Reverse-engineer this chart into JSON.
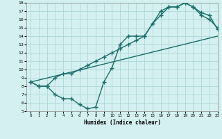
{
  "xlabel": "Humidex (Indice chaleur)",
  "bg_color": "#d4f0f0",
  "grid_color": "#aed8d8",
  "line_color": "#1a6e6a",
  "line1_x": [
    0,
    1,
    2,
    3,
    4,
    5,
    6,
    7,
    8,
    9,
    10,
    11,
    12,
    13,
    14,
    15,
    16,
    17,
    18,
    19,
    20,
    21,
    22,
    23
  ],
  "line1_y": [
    8.5,
    8.0,
    8.0,
    9.0,
    9.5,
    9.5,
    10.0,
    10.5,
    11.0,
    11.5,
    12.0,
    12.5,
    13.0,
    13.5,
    14.0,
    15.5,
    16.5,
    17.5,
    17.5,
    18.0,
    17.5,
    16.5,
    16.0,
    15.0
  ],
  "line2_x": [
    0,
    1,
    2,
    3,
    4,
    5,
    6,
    7,
    8,
    9,
    10,
    11,
    12,
    13,
    14,
    15,
    16,
    17,
    18,
    19,
    20,
    21,
    22,
    23
  ],
  "line2_y": [
    8.5,
    8.0,
    8.0,
    7.0,
    6.5,
    6.5,
    5.8,
    5.3,
    5.5,
    8.5,
    10.2,
    13.0,
    14.0,
    14.0,
    14.0,
    15.5,
    17.0,
    17.5,
    17.5,
    18.0,
    17.5,
    16.8,
    16.5,
    14.8
  ],
  "line3_x": [
    0,
    23
  ],
  "line3_y": [
    8.5,
    14.0
  ],
  "ylim": [
    5,
    18
  ],
  "xlim": [
    -0.5,
    23
  ],
  "yticks": [
    5,
    6,
    7,
    8,
    9,
    10,
    11,
    12,
    13,
    14,
    15,
    16,
    17,
    18
  ],
  "xticks": [
    0,
    1,
    2,
    3,
    4,
    5,
    6,
    7,
    8,
    9,
    10,
    11,
    12,
    13,
    14,
    15,
    16,
    17,
    18,
    19,
    20,
    21,
    22,
    23
  ],
  "markersize": 2.5,
  "linewidth": 1.0
}
